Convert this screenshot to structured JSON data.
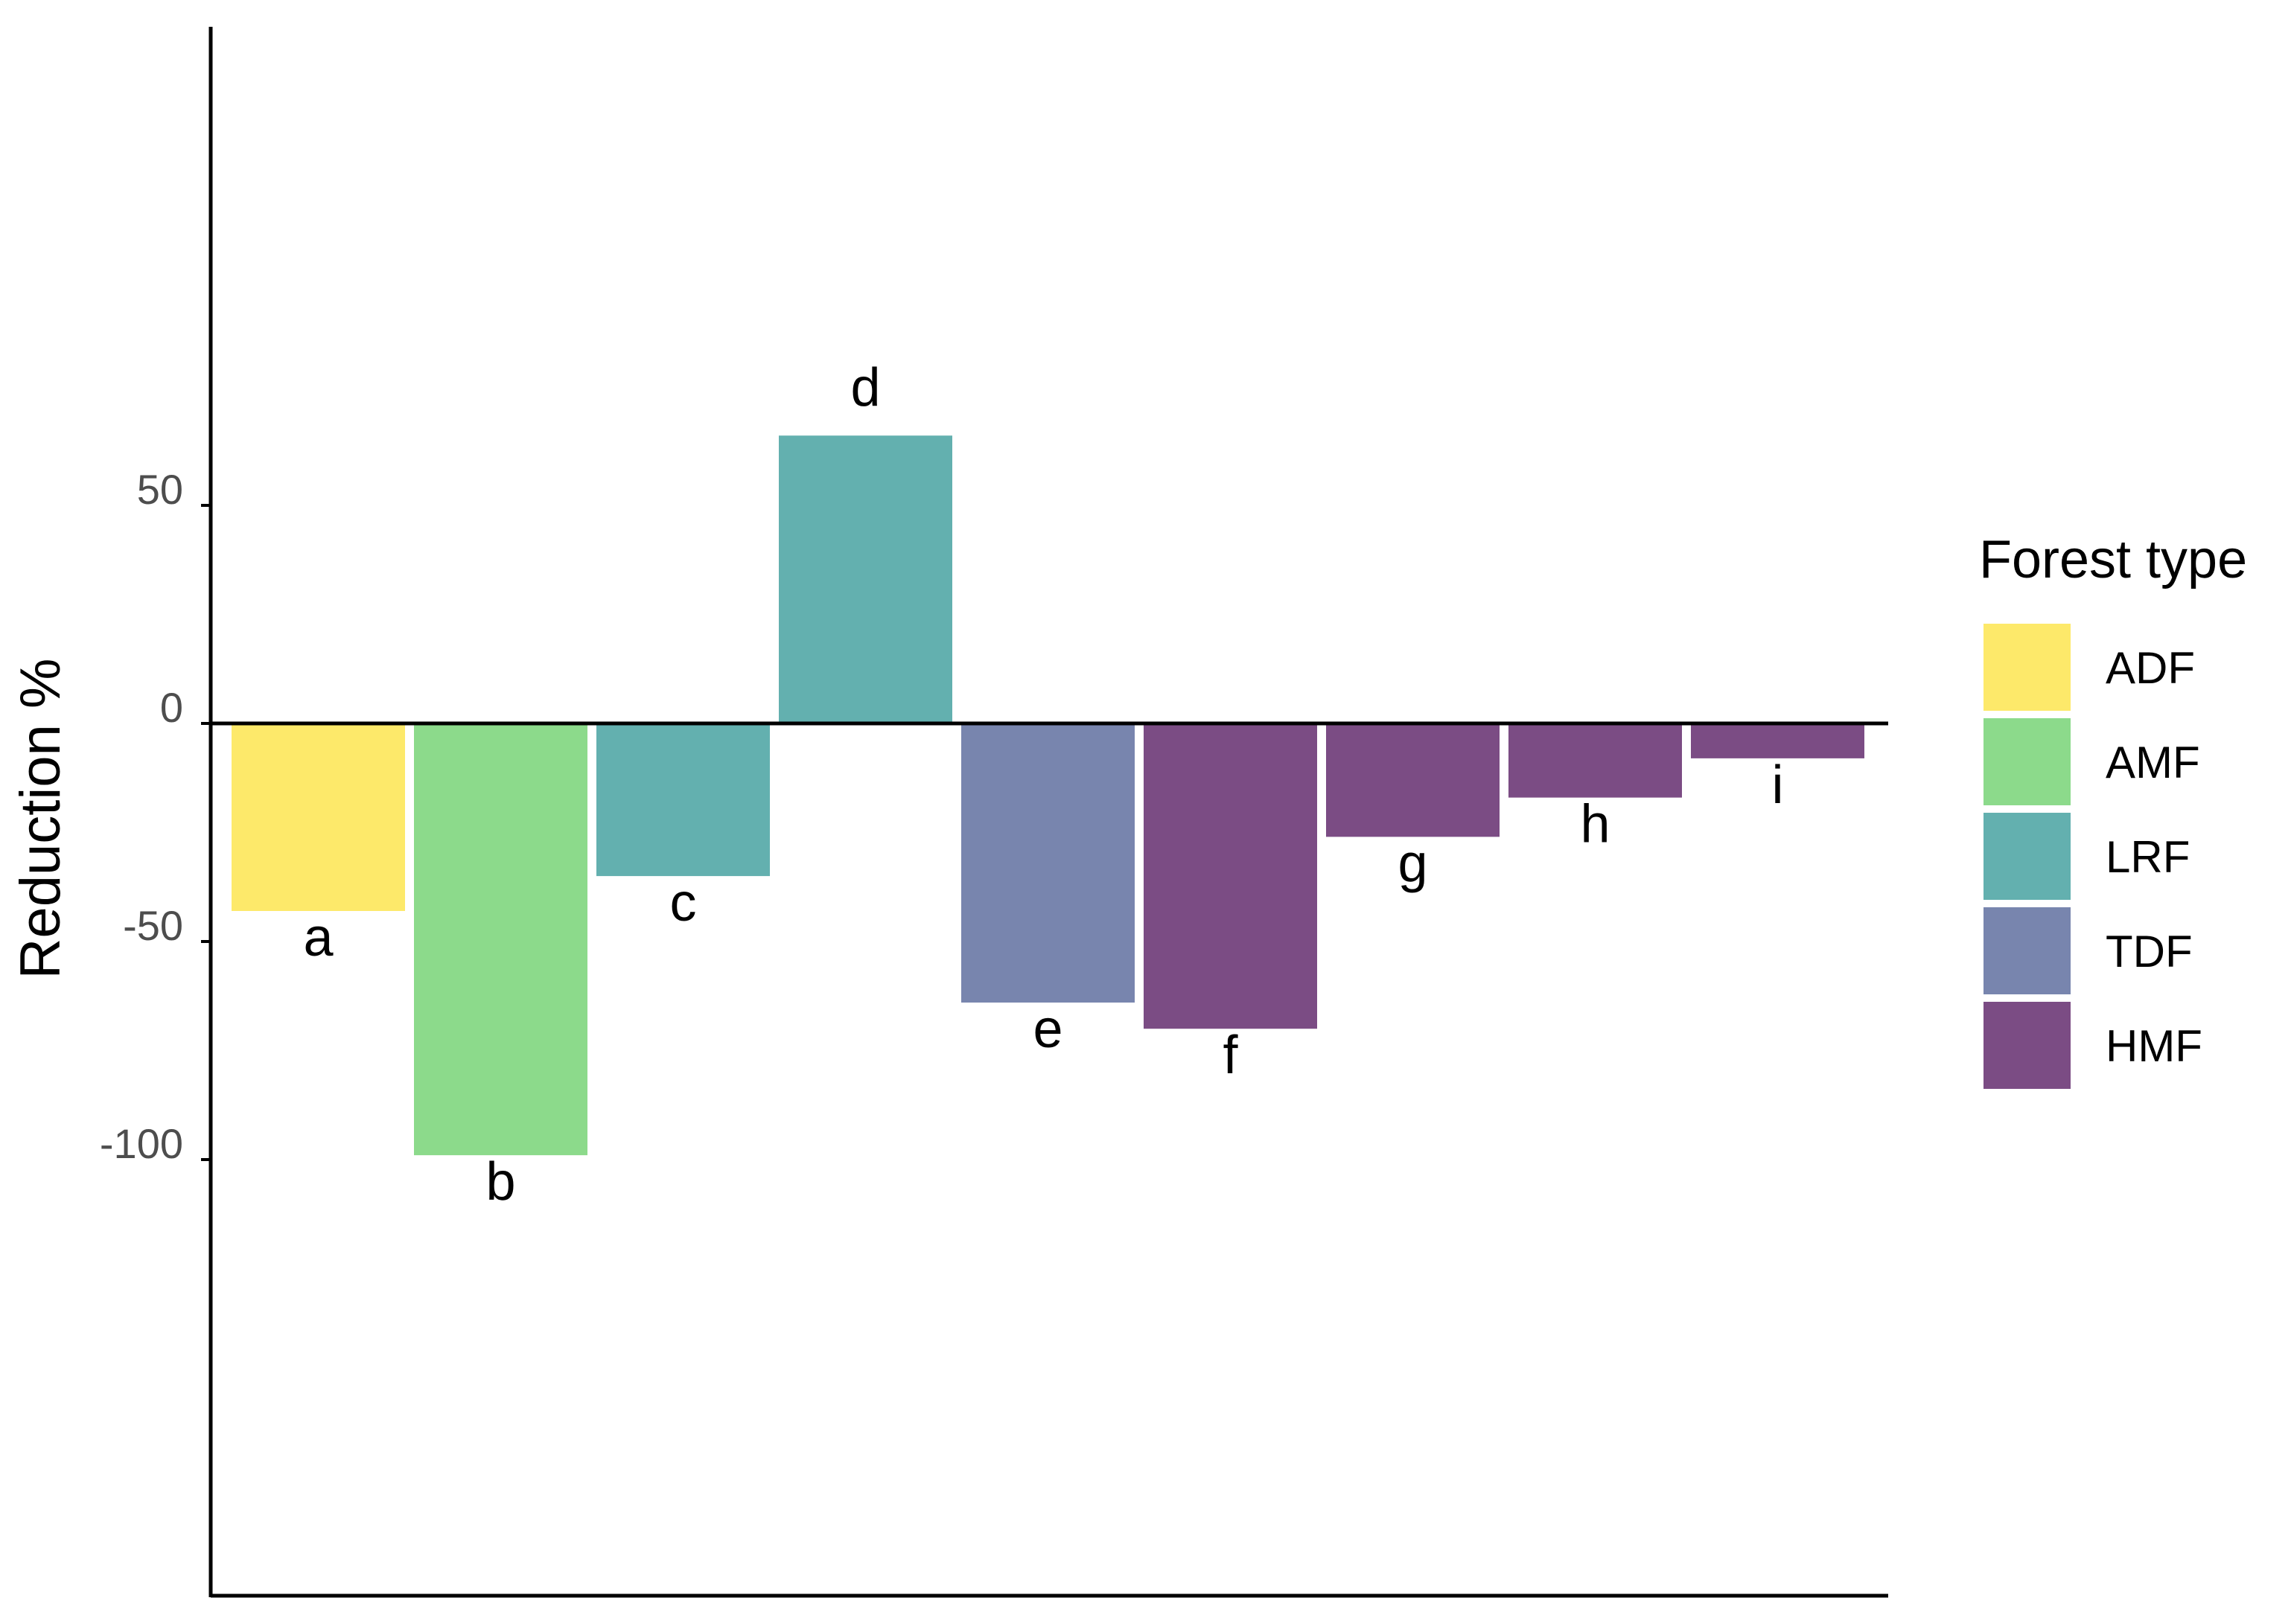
{
  "chart_data": {
    "type": "bar",
    "categories": [
      "a",
      "b",
      "c",
      "d",
      "e",
      "f",
      "g",
      "h",
      "i"
    ],
    "values": [
      -43,
      -99,
      -35,
      66,
      -64,
      -70,
      -26,
      -17,
      -8
    ],
    "bar_groups": [
      "ADF",
      "AMF",
      "LRF",
      "LRF",
      "TDF",
      "HMF",
      "HMF",
      "HMF",
      "HMF"
    ],
    "title": "",
    "xlabel": "",
    "ylabel": "Reduction %",
    "ylim": [
      -100,
      75
    ],
    "yticks": [
      50,
      0,
      -50,
      -100
    ],
    "grid": false,
    "legend": {
      "title": "Forest type",
      "placement": "right",
      "entries": [
        {
          "label": "ADF",
          "color": "#FDE96A"
        },
        {
          "label": "AMF",
          "color": "#8CDA8B"
        },
        {
          "label": "LRF",
          "color": "#63B0AF"
        },
        {
          "label": "TDF",
          "color": "#7885AE"
        },
        {
          "label": "HMF",
          "color": "#7B4C84"
        }
      ]
    }
  }
}
